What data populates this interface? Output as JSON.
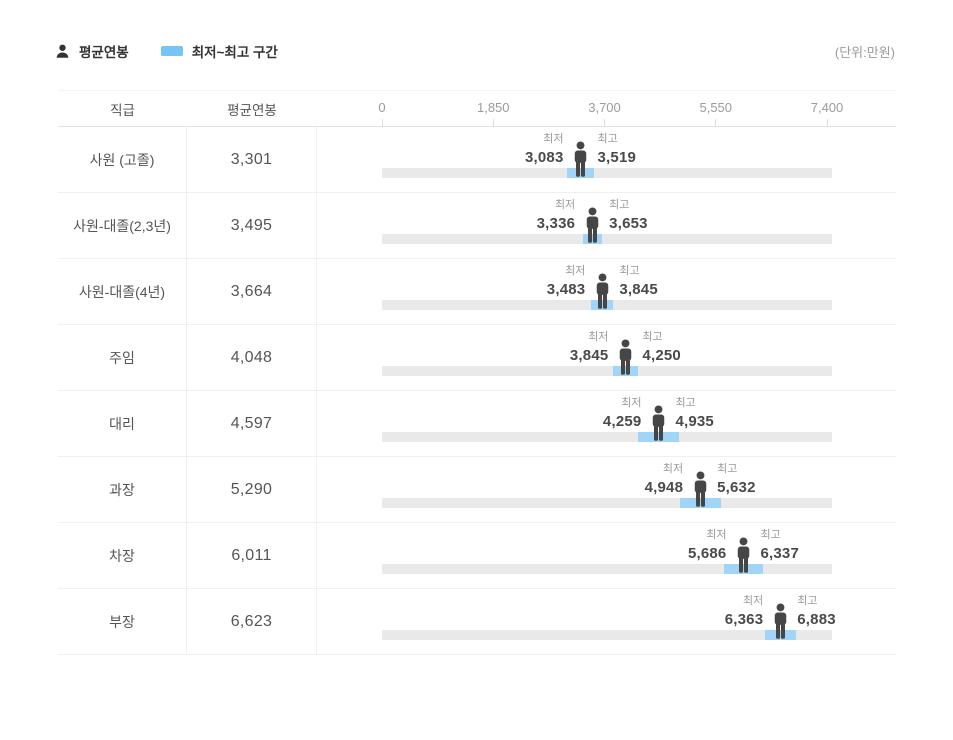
{
  "legend": {
    "avg_label": "평균연봉",
    "range_label": "최저~최고 구간",
    "unit_label": "(단위:만원)"
  },
  "table": {
    "col_position": "직급",
    "col_avg": "평균연봉",
    "min_label": "최저",
    "max_label": "최고"
  },
  "colors": {
    "legend_swatch": "#74c5f2",
    "range_fill": "#a2d4f7",
    "track": "#e9e9e9",
    "person": "#464646",
    "legend_person": "#333333"
  },
  "chart_data": {
    "type": "bar",
    "subtype": "horizontal-range-bar",
    "unit": "만원",
    "legend": [
      "평균연봉",
      "최저~최고 구간"
    ],
    "axis": {
      "min": 0,
      "max": 7400,
      "ticks": [
        0,
        1850,
        3700,
        5550,
        7400
      ],
      "tick_labels": [
        "0",
        "1,850",
        "3,700",
        "5,550",
        "7,400"
      ]
    },
    "rows": [
      {
        "position": "사원 (고졸)",
        "avg": 3301,
        "avg_label": "3,301",
        "min": 3083,
        "min_label": "3,083",
        "max": 3519,
        "max_label": "3,519"
      },
      {
        "position": "사원-대졸(2,3년)",
        "avg": 3495,
        "avg_label": "3,495",
        "min": 3336,
        "min_label": "3,336",
        "max": 3653,
        "max_label": "3,653"
      },
      {
        "position": "사원-대졸(4년)",
        "avg": 3664,
        "avg_label": "3,664",
        "min": 3483,
        "min_label": "3,483",
        "max": 3845,
        "max_label": "3,845"
      },
      {
        "position": "주임",
        "avg": 4048,
        "avg_label": "4,048",
        "min": 3845,
        "min_label": "3,845",
        "max": 4250,
        "max_label": "4,250"
      },
      {
        "position": "대리",
        "avg": 4597,
        "avg_label": "4,597",
        "min": 4259,
        "min_label": "4,259",
        "max": 4935,
        "max_label": "4,935"
      },
      {
        "position": "과장",
        "avg": 5290,
        "avg_label": "5,290",
        "min": 4948,
        "min_label": "4,948",
        "max": 5632,
        "max_label": "5,632"
      },
      {
        "position": "차장",
        "avg": 6011,
        "avg_label": "6,011",
        "min": 5686,
        "min_label": "5,686",
        "max": 6337,
        "max_label": "6,337"
      },
      {
        "position": "부장",
        "avg": 6623,
        "avg_label": "6,623",
        "min": 6363,
        "min_label": "6,363",
        "max": 6883,
        "max_label": "6,883"
      }
    ]
  }
}
